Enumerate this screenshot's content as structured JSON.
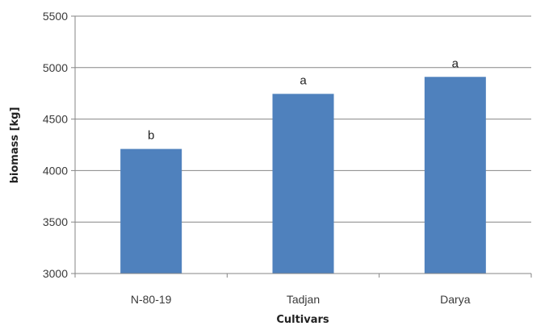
{
  "chart_data": {
    "type": "bar",
    "title": "",
    "xlabel": "Cultivars",
    "ylabel": "biomass [kg]",
    "categories": [
      "N-80-19",
      "Tadjan",
      "Darya"
    ],
    "values": [
      4210,
      4745,
      4910
    ],
    "data_labels": [
      "b",
      "a",
      "a"
    ],
    "ylim": [
      3000,
      5500
    ],
    "yticks": [
      3000,
      3500,
      4000,
      4500,
      5000,
      5500
    ],
    "grid": true,
    "legend": "none",
    "bar_color": "#4f81bd"
  }
}
